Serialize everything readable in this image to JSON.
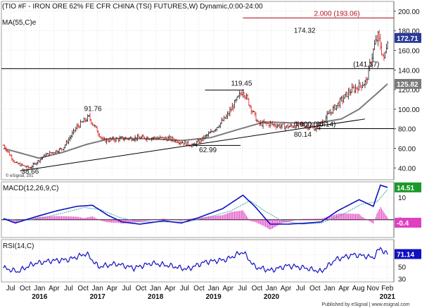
{
  "header": {
    "title": "(TIO #F - IRON ORE 62% FE CFR CHINA (TSI) FUTURES,W) Dynamic,0:00-24:00",
    "subtitle": "MA(55,C)e"
  },
  "colors": {
    "up_bar": "#222222",
    "down_bar": "#e01818",
    "ma_line": "#7a7a7a",
    "blue_line": "#1010c0",
    "signal_line": "#39a8a8",
    "histogram": "#e040c0",
    "level_red": "#b01020",
    "level_black": "#000000",
    "price_box": "#2a3a9a",
    "ma_box": "#7a7a7a",
    "macd_box": "#1a9a2a",
    "macd_neg_box": "#e040c0",
    "rsi_box": "#1010c0",
    "grid": "#c8c8c8",
    "axis_bg": "#ffffff"
  },
  "watermark": "© eSignal, 201",
  "footer": "Published by eSignal | www.esignal.com",
  "chart_data": [
    {
      "type": "candlestick",
      "name": "price",
      "yticks": [
        "200.00",
        "180.00",
        "160.00",
        "140.00",
        "120.00",
        "100.00",
        "80.00",
        "60.00",
        "40.00"
      ],
      "ylim": [
        28,
        210
      ],
      "current_price": "172.71",
      "ma_value": "125.82",
      "ma_label": "MA(55,C)e",
      "levels": [
        {
          "value": 193.06,
          "label": "2.000 (193.06)",
          "color": "red"
        },
        {
          "value": 141.37,
          "label": "(141.37)",
          "color": "black"
        },
        {
          "value": 80.14,
          "label": "0.000 (80.14)",
          "color": "black"
        }
      ],
      "annotations": [
        {
          "label": "91.76",
          "value": 91.76
        },
        {
          "label": "119.45",
          "value": 119.45
        },
        {
          "label": "174.32",
          "value": 174.32
        },
        {
          "label": "62.99",
          "value": 62.99
        },
        {
          "label": "80.14",
          "value": 80.14
        },
        {
          "label": "38.66",
          "value": 38.66
        }
      ],
      "price_anchors": [
        [
          0,
          63
        ],
        [
          10,
          45
        ],
        [
          22,
          40
        ],
        [
          35,
          53
        ],
        [
          50,
          60
        ],
        [
          62,
          82
        ],
        [
          72,
          91.76
        ],
        [
          84,
          68
        ],
        [
          100,
          70
        ],
        [
          120,
          71
        ],
        [
          140,
          70
        ],
        [
          160,
          62.99
        ],
        [
          175,
          76
        ],
        [
          188,
          92
        ],
        [
          202,
          119.45
        ],
        [
          215,
          85
        ],
        [
          225,
          85
        ],
        [
          238,
          82
        ],
        [
          252,
          84
        ],
        [
          264,
          80.14
        ],
        [
          278,
          100
        ],
        [
          292,
          118
        ],
        [
          306,
          128
        ],
        [
          313,
          165
        ],
        [
          316,
          174.32
        ],
        [
          321,
          150
        ],
        [
          324,
          172.71
        ]
      ],
      "ma_anchors": [
        [
          0,
          60
        ],
        [
          15,
          55
        ],
        [
          30,
          50
        ],
        [
          50,
          56
        ],
        [
          70,
          64
        ],
        [
          90,
          70
        ],
        [
          120,
          70
        ],
        [
          150,
          68
        ],
        [
          175,
          71
        ],
        [
          200,
          80
        ],
        [
          220,
          87
        ],
        [
          245,
          86
        ],
        [
          265,
          86
        ],
        [
          285,
          90
        ],
        [
          300,
          100
        ],
        [
          315,
          116
        ],
        [
          324,
          125.82
        ]
      ]
    },
    {
      "type": "line",
      "name": "MACD(12,26,9,C)",
      "label": "MACD(12,26,9,C)",
      "yticks": [
        "10",
        "0"
      ],
      "ylim": [
        -8,
        17
      ],
      "macd_value": "14.51",
      "hist_value": "-0.4",
      "macd_anchors": [
        [
          0,
          0.5
        ],
        [
          10,
          -1.5
        ],
        [
          25,
          1
        ],
        [
          45,
          4
        ],
        [
          62,
          6
        ],
        [
          75,
          6.5
        ],
        [
          88,
          2
        ],
        [
          100,
          -1
        ],
        [
          115,
          -2
        ],
        [
          135,
          -0.5
        ],
        [
          150,
          -1.5
        ],
        [
          165,
          1
        ],
        [
          185,
          5
        ],
        [
          202,
          11
        ],
        [
          212,
          6
        ],
        [
          225,
          -2
        ],
        [
          240,
          -2
        ],
        [
          256,
          -1.5
        ],
        [
          268,
          -1
        ],
        [
          282,
          4
        ],
        [
          300,
          9
        ],
        [
          312,
          6
        ],
        [
          318,
          15.5
        ],
        [
          324,
          14.51
        ]
      ],
      "signal_anchors": [
        [
          0,
          0.5
        ],
        [
          15,
          -0.5
        ],
        [
          30,
          0.5
        ],
        [
          50,
          3
        ],
        [
          68,
          5.5
        ],
        [
          82,
          4.5
        ],
        [
          98,
          1
        ],
        [
          115,
          -1
        ],
        [
          135,
          -1
        ],
        [
          155,
          -1
        ],
        [
          172,
          1
        ],
        [
          192,
          4
        ],
        [
          208,
          8.5
        ],
        [
          220,
          4
        ],
        [
          235,
          -0.5
        ],
        [
          252,
          -2
        ],
        [
          268,
          -1.5
        ],
        [
          285,
          2
        ],
        [
          302,
          7
        ],
        [
          315,
          8
        ],
        [
          324,
          13.5
        ]
      ]
    },
    {
      "type": "line",
      "name": "RSI(14,C)",
      "label": "RSI(14,C)",
      "yticks": [
        "70",
        "50",
        "30"
      ],
      "ylim": [
        25,
        95
      ],
      "rsi_value": "71.14",
      "rsi_anchors": [
        [
          0,
          48
        ],
        [
          12,
          42
        ],
        [
          25,
          55
        ],
        [
          40,
          60
        ],
        [
          55,
          62
        ],
        [
          70,
          72
        ],
        [
          80,
          50
        ],
        [
          95,
          55
        ],
        [
          110,
          48
        ],
        [
          125,
          56
        ],
        [
          140,
          52
        ],
        [
          155,
          46
        ],
        [
          170,
          58
        ],
        [
          188,
          62
        ],
        [
          202,
          75
        ],
        [
          212,
          50
        ],
        [
          225,
          44
        ],
        [
          240,
          52
        ],
        [
          255,
          48
        ],
        [
          268,
          42
        ],
        [
          280,
          62
        ],
        [
          295,
          70
        ],
        [
          305,
          68
        ],
        [
          312,
          65
        ],
        [
          318,
          82
        ],
        [
          321,
          74
        ],
        [
          324,
          71.14
        ]
      ]
    }
  ],
  "xaxis": {
    "month_labels": [
      "Jul",
      "Oct",
      "Jan",
      "Apr",
      "Jul",
      "Oct",
      "Jan",
      "Apr",
      "Jul",
      "Oct",
      "Jan",
      "Apr",
      "Jul",
      "Oct",
      "Jan",
      "Apr",
      "Jul",
      "Oct",
      "Jan",
      "Apr",
      "Jul",
      "Oct",
      "Jan",
      "Apr",
      "Aug",
      "Nov",
      "Feb"
    ],
    "year_labels": [
      "2016",
      "2017",
      "2018",
      "2019",
      "2020",
      "2021"
    ]
  }
}
